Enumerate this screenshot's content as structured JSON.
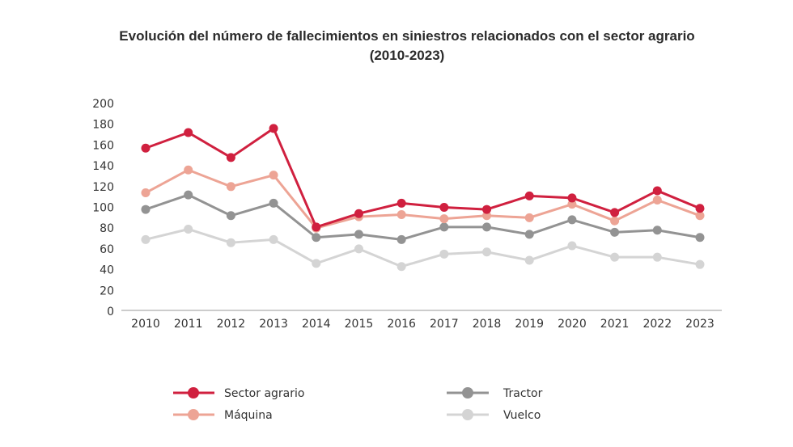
{
  "chart_data": {
    "type": "line",
    "title_line1": "Evolución del número de fallecimientos en siniestros relacionados con el sector agrario",
    "title_line2": "(2010-2023)",
    "xlabel": "",
    "ylabel": "",
    "x": [
      "2010",
      "2011",
      "2012",
      "2013",
      "2014",
      "2015",
      "2016",
      "2017",
      "2018",
      "2019",
      "2020",
      "2021",
      "2022",
      "2023"
    ],
    "ylim": [
      0,
      200
    ],
    "yticks": [
      "0",
      "20",
      "40",
      "60",
      "80",
      "100",
      "120",
      "140",
      "160",
      "180",
      "200"
    ],
    "grid": false,
    "legend_position": "bottom",
    "series": [
      {
        "name": "Sector agrario",
        "color": "#d0203f",
        "values": [
          157,
          172,
          148,
          176,
          81,
          94,
          104,
          100,
          98,
          111,
          109,
          95,
          116,
          99
        ]
      },
      {
        "name": "Máquina",
        "color": "#eda495",
        "values": [
          114,
          136,
          120,
          131,
          80,
          91,
          93,
          89,
          92,
          90,
          103,
          87,
          107,
          92
        ]
      },
      {
        "name": "Tractor",
        "color": "#939393",
        "values": [
          98,
          112,
          92,
          104,
          71,
          74,
          69,
          81,
          81,
          74,
          88,
          76,
          78,
          71
        ]
      },
      {
        "name": "Vuelco",
        "color": "#d4d4d4",
        "values": [
          69,
          79,
          66,
          69,
          46,
          60,
          43,
          55,
          57,
          49,
          63,
          52,
          52,
          45
        ]
      }
    ]
  }
}
